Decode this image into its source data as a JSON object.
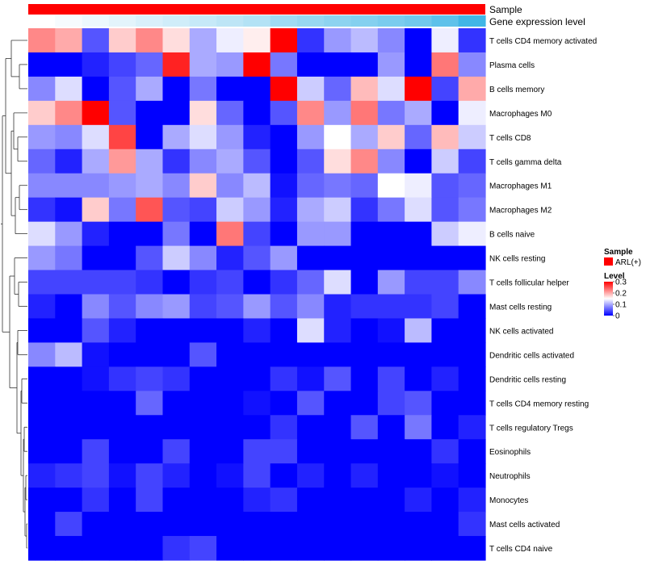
{
  "chart_data": {
    "type": "heatmap",
    "annotation_tracks": [
      {
        "name": "Sample",
        "color": "#ff0000"
      },
      {
        "name": "Gene expression level",
        "gradient": [
          "#ffffff",
          "#41b6e6"
        ]
      }
    ],
    "rows": [
      "T cells CD4 memory activated",
      "Plasma cells",
      "B cells memory",
      "Macrophages M0",
      "T cells CD8",
      "T cells gamma delta",
      "Macrophages M1",
      "Macrophages M2",
      "B cells naive",
      "NK cells resting",
      "T cells follicular helper",
      "Mast cells resting",
      "NK cells activated",
      "Dendritic cells activated",
      "Dendritic cells resting",
      "T cells CD4 memory resting",
      "T cells regulatory  Tregs",
      "Eosinophils",
      "Neutrophils",
      "Monocytes",
      "Mast cells activated",
      "T cells CD4 naive"
    ],
    "values": [
      [
        0.22,
        0.2,
        0.05,
        0.18,
        0.22,
        0.17,
        0.1,
        0.14,
        0.16,
        0.3,
        0.03,
        0.09,
        0.11,
        0.08,
        0.0,
        0.14,
        0.03
      ],
      [
        0.0,
        0.0,
        0.02,
        0.04,
        0.06,
        0.28,
        0.1,
        0.09,
        0.3,
        0.07,
        0.0,
        0.0,
        0.0,
        0.09,
        0.0,
        0.23,
        0.08
      ],
      [
        0.08,
        0.13,
        0.0,
        0.05,
        0.1,
        0.0,
        0.07,
        0.0,
        0.0,
        0.3,
        0.12,
        0.06,
        0.19,
        0.13,
        0.3,
        0.04,
        0.2
      ],
      [
        0.18,
        0.22,
        0.3,
        0.05,
        0.0,
        0.0,
        0.17,
        0.06,
        0.0,
        0.05,
        0.22,
        0.09,
        0.23,
        0.07,
        0.1,
        0.0,
        0.14
      ],
      [
        0.09,
        0.08,
        0.13,
        0.26,
        0.0,
        0.1,
        0.13,
        0.09,
        0.02,
        0.0,
        0.09,
        0.15,
        0.1,
        0.18,
        0.06,
        0.19,
        0.12
      ],
      [
        0.06,
        0.02,
        0.1,
        0.21,
        0.1,
        0.03,
        0.08,
        0.1,
        0.05,
        0.0,
        0.05,
        0.17,
        0.22,
        0.08,
        0.0,
        0.12,
        0.04
      ],
      [
        0.08,
        0.08,
        0.08,
        0.09,
        0.1,
        0.08,
        0.18,
        0.08,
        0.11,
        0.01,
        0.06,
        0.07,
        0.06,
        0.15,
        0.14,
        0.05,
        0.06
      ],
      [
        0.03,
        0.01,
        0.18,
        0.07,
        0.25,
        0.05,
        0.04,
        0.12,
        0.09,
        0.02,
        0.1,
        0.12,
        0.03,
        0.07,
        0.13,
        0.05,
        0.07
      ],
      [
        0.13,
        0.09,
        0.02,
        0.0,
        0.0,
        0.07,
        0.0,
        0.23,
        0.04,
        0.0,
        0.09,
        0.09,
        0.0,
        0.0,
        0.0,
        0.12,
        0.14
      ],
      [
        0.09,
        0.07,
        0.0,
        0.0,
        0.05,
        0.12,
        0.08,
        0.02,
        0.05,
        0.09,
        0.0,
        0.0,
        0.0,
        0.0,
        0.0,
        0.0,
        0.0
      ],
      [
        0.04,
        0.04,
        0.04,
        0.04,
        0.03,
        0.0,
        0.03,
        0.04,
        0.0,
        0.03,
        0.06,
        0.13,
        0.0,
        0.09,
        0.04,
        0.04,
        0.08
      ],
      [
        0.02,
        0.0,
        0.08,
        0.05,
        0.08,
        0.09,
        0.04,
        0.05,
        0.09,
        0.05,
        0.08,
        0.02,
        0.03,
        0.03,
        0.03,
        0.04,
        0.0
      ],
      [
        0.0,
        0.0,
        0.05,
        0.02,
        0.0,
        0.0,
        0.0,
        0.0,
        0.02,
        0.0,
        0.13,
        0.02,
        0.0,
        0.01,
        0.11,
        0.0,
        0.0
      ],
      [
        0.08,
        0.11,
        0.01,
        0.0,
        0.0,
        0.0,
        0.05,
        0.0,
        0.0,
        0.0,
        0.0,
        0.0,
        0.0,
        0.0,
        0.0,
        0.0,
        0.0
      ],
      [
        0.0,
        0.0,
        0.01,
        0.03,
        0.04,
        0.03,
        0.0,
        0.0,
        0.0,
        0.03,
        0.01,
        0.05,
        0.0,
        0.04,
        0.0,
        0.02,
        0.0
      ],
      [
        0.0,
        0.0,
        0.0,
        0.0,
        0.06,
        0.0,
        0.0,
        0.0,
        0.01,
        0.0,
        0.05,
        0.0,
        0.0,
        0.04,
        0.05,
        0.0,
        0.0
      ],
      [
        0.0,
        0.0,
        0.0,
        0.0,
        0.0,
        0.0,
        0.0,
        0.0,
        0.0,
        0.03,
        0.0,
        0.0,
        0.05,
        0.0,
        0.07,
        0.0,
        0.02
      ],
      [
        0.0,
        0.0,
        0.04,
        0.0,
        0.0,
        0.04,
        0.0,
        0.0,
        0.04,
        0.04,
        0.0,
        0.0,
        0.0,
        0.0,
        0.0,
        0.03,
        0.0
      ],
      [
        0.02,
        0.03,
        0.04,
        0.01,
        0.04,
        0.02,
        0.0,
        0.01,
        0.04,
        0.0,
        0.02,
        0.0,
        0.02,
        0.0,
        0.0,
        0.01,
        0.0
      ],
      [
        0.0,
        0.0,
        0.03,
        0.0,
        0.04,
        0.0,
        0.0,
        0.0,
        0.02,
        0.03,
        0.0,
        0.0,
        0.0,
        0.0,
        0.02,
        0.0,
        0.02
      ],
      [
        0.0,
        0.04,
        0.0,
        0.0,
        0.0,
        0.0,
        0.0,
        0.0,
        0.0,
        0.0,
        0.0,
        0.0,
        0.0,
        0.0,
        0.0,
        0.0,
        0.03
      ],
      [
        0.0,
        0.0,
        0.0,
        0.0,
        0.0,
        0.03,
        0.04,
        0.0,
        0.0,
        0.0,
        0.0,
        0.0,
        0.0,
        0.0,
        0.0,
        0.0,
        0.0
      ]
    ],
    "gene_expression_level": [
      0.0,
      0.05,
      0.1,
      0.15,
      0.2,
      0.25,
      0.3,
      0.35,
      0.4,
      0.5,
      0.55,
      0.6,
      0.65,
      0.7,
      0.75,
      0.85,
      1.0
    ],
    "dendrogram_order": [
      0,
      1,
      2,
      3,
      4,
      5,
      6,
      7,
      8,
      9,
      10,
      11,
      12,
      13,
      14,
      15,
      16,
      17,
      18,
      19,
      20,
      21
    ],
    "color_scale": {
      "min": 0,
      "max": 0.3,
      "low": "#0000ff",
      "mid": "#ffffff",
      "high": "#ff0000"
    },
    "legend": {
      "sample_title": "Sample",
      "sample_entry": "ARL(+)",
      "sample_color": "#ff0000",
      "level_title": "Level",
      "ticks": [
        0.3,
        0.2,
        0.1,
        0
      ],
      "tick_labels": [
        "0.3",
        "0.2",
        "0.1",
        "0"
      ]
    }
  }
}
